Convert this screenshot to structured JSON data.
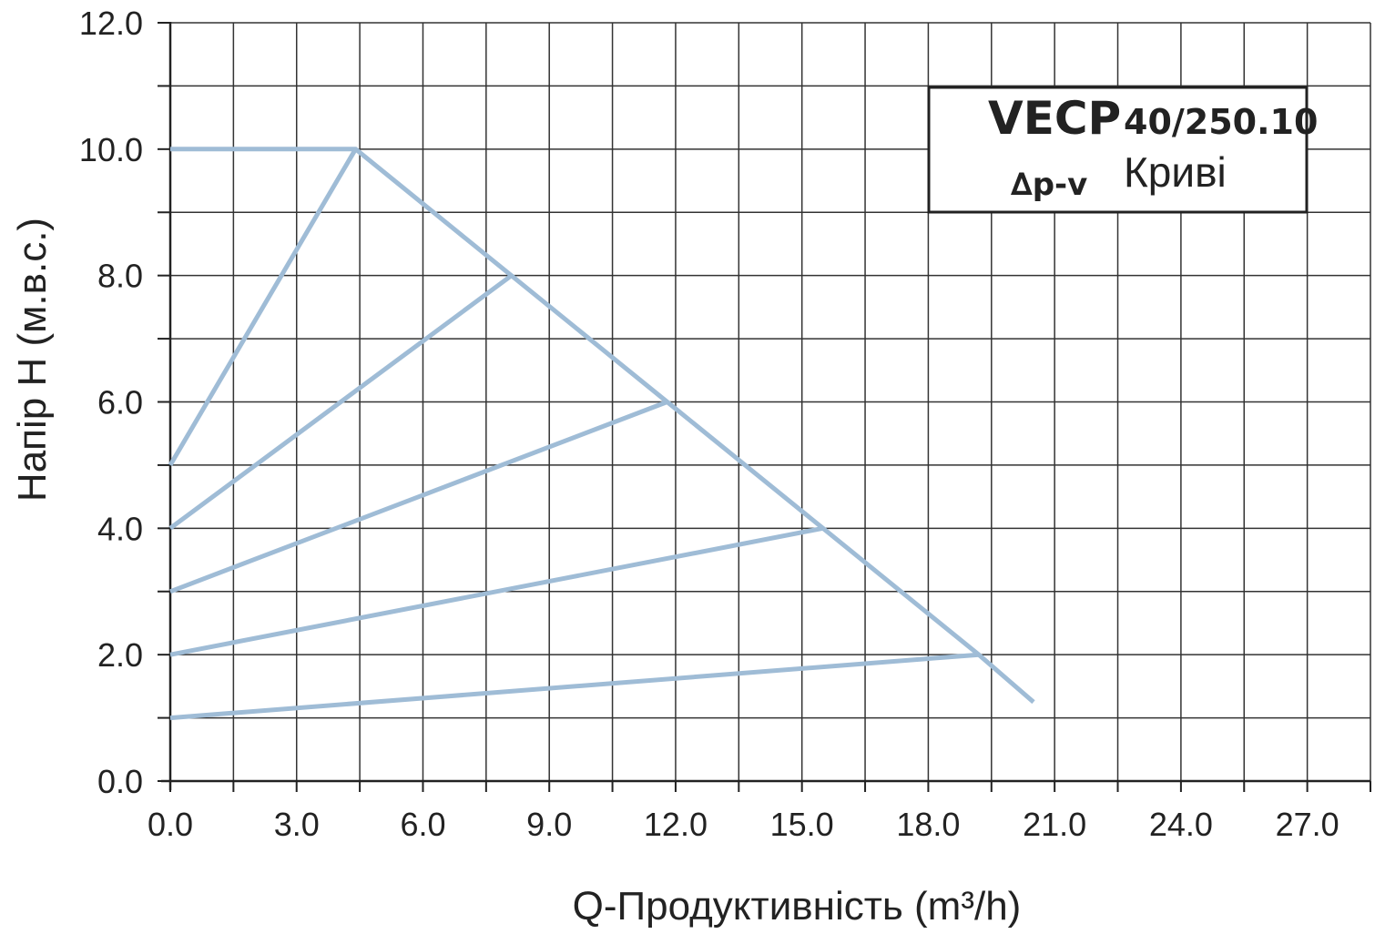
{
  "chart_data": {
    "type": "line",
    "title": "",
    "xlabel": "Q-Продуктивність (m³/h)",
    "ylabel": "Напір H (м.в.с.)",
    "xlim": [
      0,
      28.5
    ],
    "ylim": [
      0,
      12
    ],
    "x_ticks": [
      "0.0",
      "3.0",
      "6.0",
      "9.0",
      "12.0",
      "15.0",
      "18.0",
      "21.0",
      "24.0",
      "27.0"
    ],
    "y_ticks": [
      "0.0",
      "2.0",
      "4.0",
      "6.0",
      "8.0",
      "10.0",
      "12.0"
    ],
    "grid": true,
    "legend": {
      "placement": "top-right",
      "model": "VECP",
      "size": "40/250.10",
      "mode": "∆p-v",
      "curves_label": "Криві"
    },
    "line_color": "#9fbcd6",
    "series": [
      {
        "x": [
          0,
          4.4
        ],
        "y": [
          5,
          10
        ]
      },
      {
        "x": [
          0,
          8.1
        ],
        "y": [
          4,
          8
        ]
      },
      {
        "x": [
          0,
          11.8
        ],
        "y": [
          3,
          6
        ]
      },
      {
        "x": [
          0,
          15.5
        ],
        "y": [
          2,
          4
        ]
      },
      {
        "x": [
          0,
          19.2
        ],
        "y": [
          1,
          2
        ]
      },
      {
        "x": [
          0,
          4.4,
          8.1,
          11.8,
          15.5,
          19.2,
          20.5
        ],
        "y": [
          10,
          10,
          8,
          6,
          4,
          2,
          1.25
        ]
      }
    ]
  }
}
